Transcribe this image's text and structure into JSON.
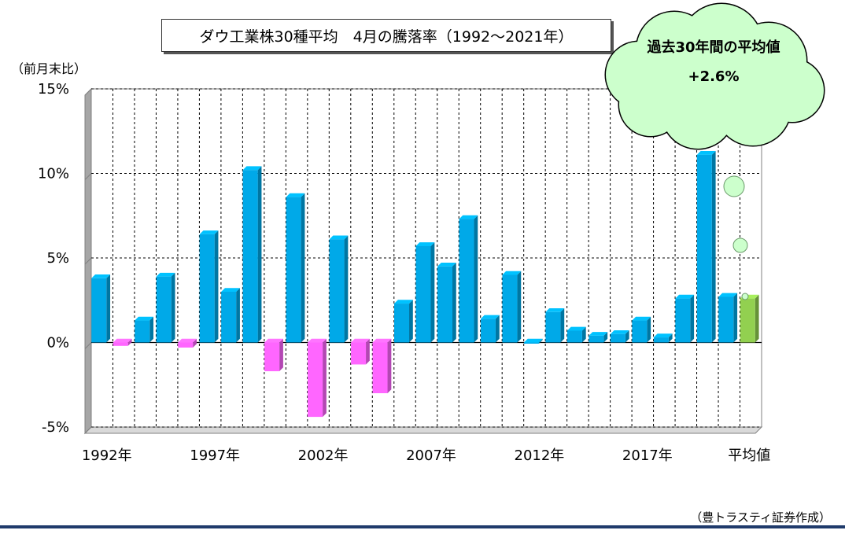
{
  "chart_data": {
    "type": "bar",
    "title": "ダウ工業株30種平均　4月の騰落率（1992～2021年）",
    "ylabel": "（前月末比）",
    "y_ticks": [
      "15%",
      "10%",
      "5%",
      "0%",
      "-5%"
    ],
    "y_tick_values": [
      15,
      10,
      5,
      0,
      -5
    ],
    "ylim": [
      -5,
      15
    ],
    "x_tick_labels": [
      {
        "label": "1992年",
        "category": "1992"
      },
      {
        "label": "1997年",
        "category": "1997"
      },
      {
        "label": "2002年",
        "category": "2002"
      },
      {
        "label": "2007年",
        "category": "2007"
      },
      {
        "label": "2012年",
        "category": "2012"
      },
      {
        "label": "2017年",
        "category": "2017"
      },
      {
        "label": "平均値",
        "category": "平均値"
      }
    ],
    "categories": [
      "1992",
      "1993",
      "1994",
      "1995",
      "1996",
      "1997",
      "1998",
      "1999",
      "2000",
      "2001",
      "2002",
      "2003",
      "2004",
      "2005",
      "2006",
      "2007",
      "2008",
      "2009",
      "2010",
      "2011",
      "2012",
      "2013",
      "2014",
      "2015",
      "2016",
      "2017",
      "2018",
      "2019",
      "2020",
      "2021",
      "平均値"
    ],
    "values": [
      3.8,
      -0.2,
      1.3,
      3.9,
      -0.3,
      6.4,
      3.0,
      10.2,
      -1.7,
      8.6,
      -4.4,
      6.1,
      -1.3,
      -3.0,
      2.3,
      5.7,
      4.5,
      7.3,
      1.4,
      4.0,
      0.0,
      1.8,
      0.7,
      0.4,
      0.5,
      1.3,
      0.3,
      2.6,
      11.1,
      2.7,
      2.6
    ],
    "colors": {
      "positive": "#00a9e8",
      "negative": "#ff66ff",
      "average": "#92d050"
    },
    "grid": true,
    "callout": {
      "line1": "過去30年間の平均値",
      "line2": "+2.6%"
    }
  },
  "source_note": "（豊トラスティ証券作成）"
}
